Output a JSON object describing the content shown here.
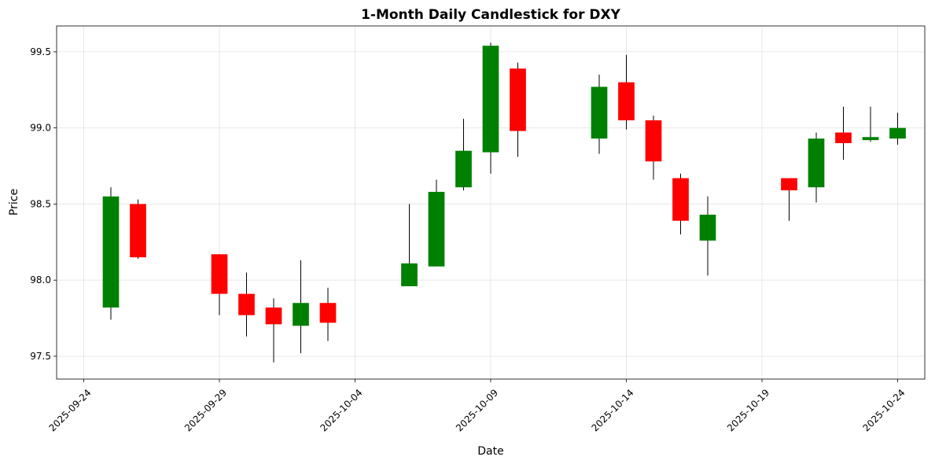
{
  "chart_data": {
    "type": "candlestick",
    "title": "1-Month Daily Candlestick for DXY",
    "xlabel": "Date",
    "ylabel": "Price",
    "ylim": [
      97.35,
      99.67
    ],
    "xlim": [
      "2025-09-23",
      "2025-10-25"
    ],
    "grid": true,
    "colors": {
      "up": "#008000",
      "down": "#ff0000",
      "wick": "#000000"
    },
    "x_ticks": [
      "2025-09-24",
      "2025-09-29",
      "2025-10-04",
      "2025-10-09",
      "2025-10-14",
      "2025-10-19",
      "2025-10-24"
    ],
    "y_ticks": [
      "97.5",
      "98.0",
      "98.5",
      "99.0",
      "99.5"
    ],
    "candles": [
      {
        "date": "2025-09-25",
        "open": 97.82,
        "high": 98.61,
        "low": 97.74,
        "close": 98.55
      },
      {
        "date": "2025-09-26",
        "open": 98.5,
        "high": 98.53,
        "low": 98.14,
        "close": 98.15
      },
      {
        "date": "2025-09-29",
        "open": 98.17,
        "high": 98.17,
        "low": 97.77,
        "close": 97.91
      },
      {
        "date": "2025-09-30",
        "open": 97.91,
        "high": 98.05,
        "low": 97.63,
        "close": 97.77
      },
      {
        "date": "2025-10-01",
        "open": 97.82,
        "high": 97.88,
        "low": 97.46,
        "close": 97.71
      },
      {
        "date": "2025-10-02",
        "open": 97.7,
        "high": 98.13,
        "low": 97.52,
        "close": 97.85
      },
      {
        "date": "2025-10-03",
        "open": 97.85,
        "high": 97.95,
        "low": 97.6,
        "close": 97.72
      },
      {
        "date": "2025-10-06",
        "open": 97.96,
        "high": 98.5,
        "low": 97.96,
        "close": 98.11
      },
      {
        "date": "2025-10-07",
        "open": 98.09,
        "high": 98.66,
        "low": 98.09,
        "close": 98.58
      },
      {
        "date": "2025-10-08",
        "open": 98.61,
        "high": 99.06,
        "low": 98.59,
        "close": 98.85
      },
      {
        "date": "2025-10-09",
        "open": 98.84,
        "high": 99.56,
        "low": 98.7,
        "close": 99.54
      },
      {
        "date": "2025-10-10",
        "open": 99.39,
        "high": 99.43,
        "low": 98.81,
        "close": 98.98
      },
      {
        "date": "2025-10-13",
        "open": 98.93,
        "high": 99.35,
        "low": 98.83,
        "close": 99.27
      },
      {
        "date": "2025-10-14",
        "open": 99.3,
        "high": 99.48,
        "low": 98.99,
        "close": 99.05
      },
      {
        "date": "2025-10-15",
        "open": 99.05,
        "high": 99.08,
        "low": 98.66,
        "close": 98.78
      },
      {
        "date": "2025-10-16",
        "open": 98.67,
        "high": 98.7,
        "low": 98.3,
        "close": 98.39
      },
      {
        "date": "2025-10-17",
        "open": 98.26,
        "high": 98.55,
        "low": 98.03,
        "close": 98.43
      },
      {
        "date": "2025-10-20",
        "open": 98.67,
        "high": 98.67,
        "low": 98.39,
        "close": 98.59
      },
      {
        "date": "2025-10-21",
        "open": 98.61,
        "high": 98.97,
        "low": 98.51,
        "close": 98.93
      },
      {
        "date": "2025-10-22",
        "open": 98.97,
        "high": 99.14,
        "low": 98.79,
        "close": 98.9
      },
      {
        "date": "2025-10-23",
        "open": 98.92,
        "high": 99.14,
        "low": 98.91,
        "close": 98.94
      },
      {
        "date": "2025-10-24",
        "open": 98.93,
        "high": 99.1,
        "low": 98.89,
        "close": 99.0
      }
    ]
  }
}
